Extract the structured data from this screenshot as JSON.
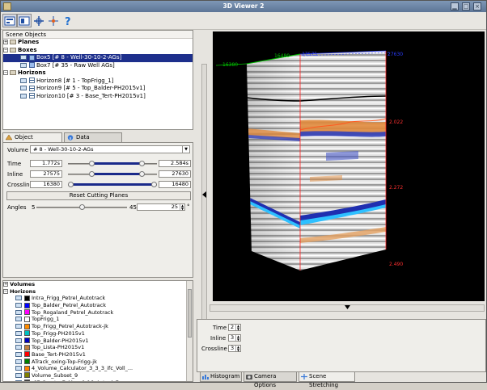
{
  "window": {
    "title": "3D Viewer 2"
  },
  "toolbar": {
    "tools": [
      "layout-icon",
      "panel-icon",
      "move-icon",
      "pick-icon",
      "help-icon"
    ]
  },
  "scene": {
    "header": "Scene Objects",
    "planes": "Planes",
    "boxes": "Boxes",
    "box_items": [
      "Box5 [# 8 - Well-30-10-2-AGs]",
      "Box7 [# 35 - Raw Well AGs]"
    ],
    "horizons": "Horizons",
    "horizon_items": [
      "Horizon8 [# 1 - TopFrigg_1]",
      "Horizon9 [# 5 - Top_Balder-PH2015v1]",
      "Horizon10 [# 3 - Base_Tert-PH2015v1]"
    ]
  },
  "props_tabs": {
    "object_properties": "Object Properties",
    "data_information": "Data Information"
  },
  "props": {
    "volume_label": "Volume",
    "volume_value": "# 8 - Well-30-10-2-AGs",
    "time_label": "Time",
    "time_min": "1.772s",
    "time_max": "2.584s",
    "inline_label": "Inline",
    "inline_min": "27575",
    "inline_max": "27630",
    "crossline_label": "Crossline",
    "crossline_min": "16380",
    "crossline_max": "16480",
    "reset_label": "Reset Cutting Planes",
    "angles_label": "Angles",
    "angles_min": "5",
    "angles_max": "45",
    "angles_value": "25",
    "angles_unit": "°",
    "time_range": [
      0.27,
      0.83
    ],
    "inline_range": [
      0.27,
      0.83
    ],
    "crossline_range": [
      0.03,
      0.97
    ],
    "angles_position": 0.5
  },
  "lists": {
    "volumes": "Volumes",
    "horizons": "Horizons",
    "items": [
      {
        "label": "Intra_Frigg_Petrel_Autotrack",
        "color": "#000000"
      },
      {
        "label": "Top_Balder_Petrel_Autotrack",
        "color": "#0000ff"
      },
      {
        "label": "Top_Rogaland_Petrel_Autotrack",
        "color": "#ff00ff"
      },
      {
        "label": "TopFrigg_1",
        "color": "#ffffff"
      },
      {
        "label": "Top_Frigg_Petrel_Autotrack-jk",
        "color": "#ff8c00"
      },
      {
        "label": "Top_Frigg-PH2015v1",
        "color": "#00c0c0"
      },
      {
        "label": "Top_Balder-PH2015v1",
        "color": "#0000c0"
      },
      {
        "label": "Top_Lista-PH2015v1",
        "color": "#c08040"
      },
      {
        "label": "Base_Tert-PH2015v1",
        "color": "#ff0000"
      },
      {
        "label": "ATrack_oxing-Top-Frigg-jk",
        "color": "#008000"
      },
      {
        "label": "4_Volume_Calculator_3_3_3_ifc_Voll_...",
        "color": "#ff8000"
      },
      {
        "label": "Volume_Subset_9",
        "color": "#808000"
      },
      {
        "label": "-67-Create_7_Map_9-16_Actual_7_...",
        "color": "#404040"
      }
    ]
  },
  "viewport": {
    "labels": [
      {
        "text": "16480",
        "color": "#00c000"
      },
      {
        "text": "16380",
        "color": "#00c000"
      },
      {
        "text": "27575",
        "color": "#2a3cff"
      },
      {
        "text": "27630",
        "color": "#2a3cff"
      },
      {
        "text": "2.022",
        "color": "#ff3030"
      },
      {
        "text": "2.272",
        "color": "#ff3030"
      },
      {
        "text": "2.490",
        "color": "#ff3030"
      }
    ]
  },
  "stretching": {
    "time_label": "Time",
    "time_value": "2",
    "inline_label": "Inline",
    "inline_value": "3",
    "crossline_label": "Crossline",
    "crossline_value": "3"
  },
  "bottom_tabs": {
    "histogram": "Histogram",
    "camera_options": "Camera Options",
    "scene_stretching": "Scene Stretching"
  }
}
